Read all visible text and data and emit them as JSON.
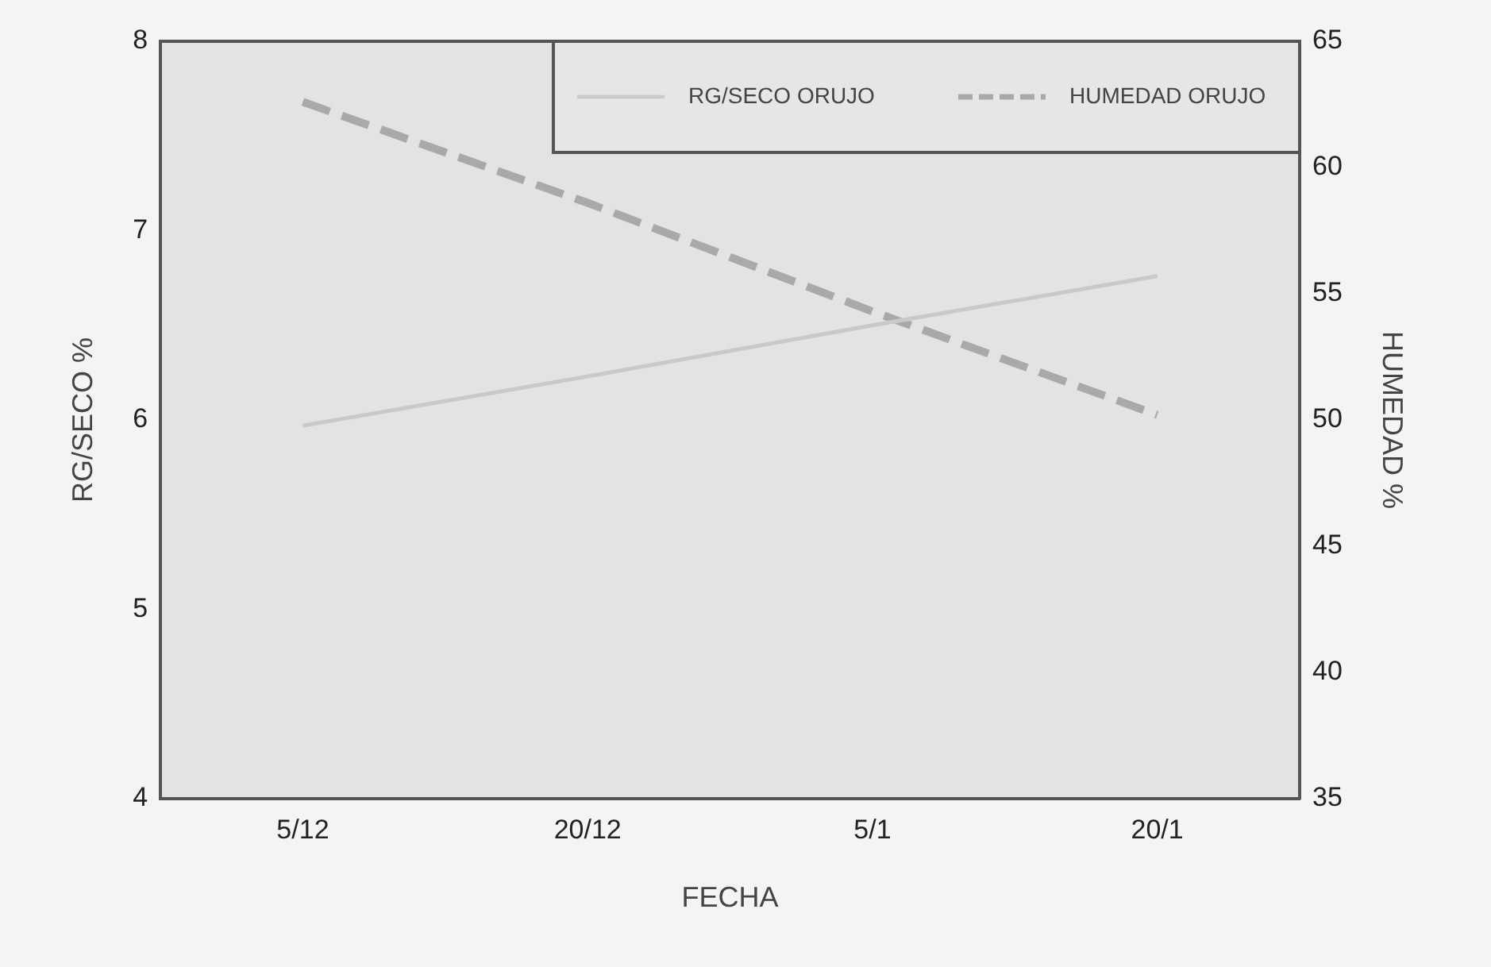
{
  "chart_data": {
    "type": "line",
    "xlabel": "FECHA",
    "ylabel": "RG/SECO %",
    "y2label": "HUMEDAD %",
    "categories": [
      "5/12",
      "20/12",
      "5/1",
      "20/1"
    ],
    "ylim": [
      4,
      8
    ],
    "yticks": [
      4,
      5,
      6,
      7,
      8
    ],
    "y2lim": [
      35,
      65
    ],
    "y2ticks": [
      35,
      40,
      45,
      50,
      55,
      60,
      65
    ],
    "series": [
      {
        "name": "RG/SECO ORUJO",
        "color": "#c9c9c9",
        "line_style": "solid",
        "values": [
          5.97,
          6.23,
          6.5,
          6.76
        ]
      },
      {
        "name": "HUMEDAD ORUJO",
        "color": "#a9a9a9",
        "line_style": "dashed",
        "axis": "y2",
        "values": [
          62.6,
          58.6,
          54.3,
          50.2
        ]
      }
    ],
    "marker": "none",
    "grid": false,
    "legend": "top right"
  }
}
